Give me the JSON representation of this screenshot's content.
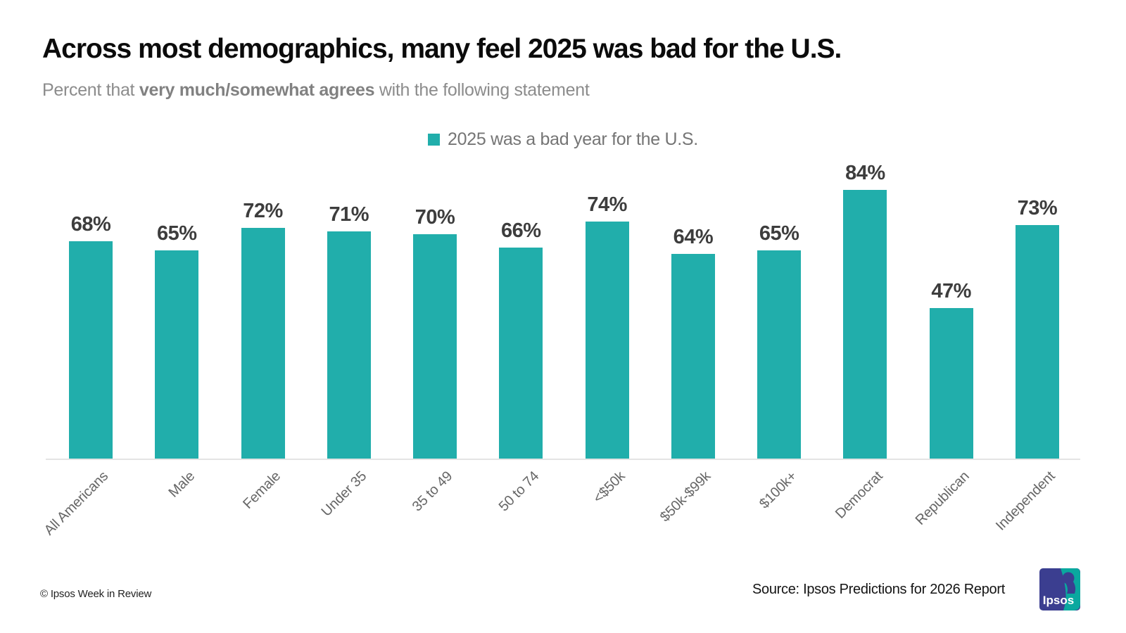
{
  "header": {
    "title": "Across most demographics, many feel 2025 was bad for the U.S.",
    "subtitle_prefix": "Percent that ",
    "subtitle_bold": "very much/somewhat agrees",
    "subtitle_suffix": " with the following statement"
  },
  "legend": {
    "label": "2025 was a bad year for the U.S.",
    "swatch_color": "#21aeab"
  },
  "chart_data": {
    "type": "bar",
    "categories": [
      "All Americans",
      "Male",
      "Female",
      "Under 35",
      "35 to 49",
      "50 to 74",
      "<$50k",
      "$50k-$99k",
      "$100k+",
      "Democrat",
      "Republican",
      "Independent"
    ],
    "values": [
      68,
      65,
      72,
      71,
      70,
      66,
      74,
      64,
      65,
      84,
      47,
      73
    ],
    "series_name": "2025 was a bad year for the U.S.",
    "value_suffix": "%",
    "bar_color": "#21aeab",
    "ylim": [
      0,
      100
    ],
    "grid": false,
    "legend_position": "top-center",
    "title": "Across most demographics, many feel 2025 was bad for the U.S.",
    "xlabel": "",
    "ylabel": ""
  },
  "footer": {
    "copyright": "© Ipsos Week in Review",
    "source": "Source: Ipsos Predictions for 2026 Report",
    "logo_text": "Ipsos"
  },
  "colors": {
    "accent_teal": "#21aeab",
    "logo_navy": "#3b3e90",
    "logo_teal": "#0aa89f",
    "axis_line": "#e4e4e4"
  }
}
